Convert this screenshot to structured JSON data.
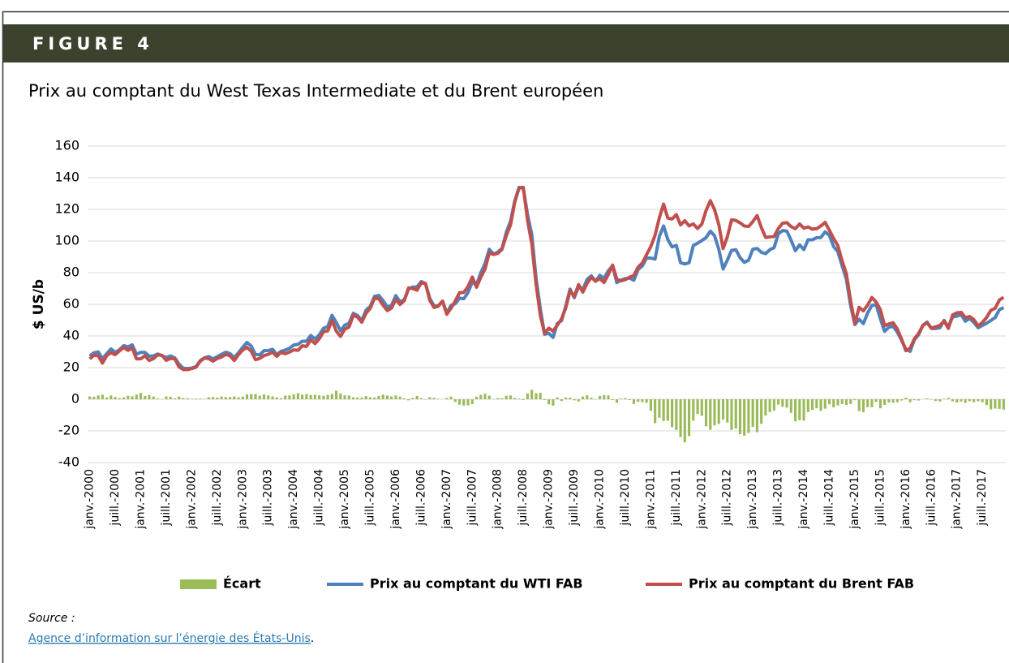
{
  "header": {
    "figure": "FIGURE 4"
  },
  "source": {
    "label": "Source :",
    "link": "Agence d’information sur l’énergie des États-Unis",
    "suffix": "."
  },
  "chart_data": {
    "type": "combo",
    "title": "Prix au comptant du West Texas Intermediate et du Brent européen",
    "y_label": "$ US/b",
    "ylim": [
      -40,
      160
    ],
    "yticks": [
      -40,
      -20,
      0,
      20,
      40,
      60,
      80,
      100,
      120,
      140,
      160
    ],
    "grid": true,
    "legend": "bottom",
    "categories": [
      "janv.-2000",
      null,
      null,
      null,
      null,
      null,
      "juill.-2000",
      null,
      null,
      null,
      null,
      null,
      "janv.-2001",
      null,
      null,
      null,
      null,
      null,
      "juill.-2001",
      null,
      null,
      null,
      null,
      null,
      "janv.-2002",
      null,
      null,
      null,
      null,
      null,
      "juill.-2002",
      null,
      null,
      null,
      null,
      null,
      "janv.-2003",
      null,
      null,
      null,
      null,
      null,
      "juill.-2003",
      null,
      null,
      null,
      null,
      null,
      "janv.-2004",
      null,
      null,
      null,
      null,
      null,
      "juill.-2004",
      null,
      null,
      null,
      null,
      null,
      "janv.-2005",
      null,
      null,
      null,
      null,
      null,
      "juill.-2005",
      null,
      null,
      null,
      null,
      null,
      "janv.-2006",
      null,
      null,
      null,
      null,
      null,
      "juill.-2006",
      null,
      null,
      null,
      null,
      null,
      "janv.-2007",
      null,
      null,
      null,
      null,
      null,
      "juill.-2007",
      null,
      null,
      null,
      null,
      null,
      "janv.-2008",
      null,
      null,
      null,
      null,
      null,
      "juill.-2008",
      null,
      null,
      null,
      null,
      null,
      "janv.-2009",
      null,
      null,
      null,
      null,
      null,
      "juill.-2009",
      null,
      null,
      null,
      null,
      null,
      "janv.-2010",
      null,
      null,
      null,
      null,
      null,
      "juill.-2010",
      null,
      null,
      null,
      null,
      null,
      "janv.-2011",
      null,
      null,
      null,
      null,
      null,
      "juill.-2011",
      null,
      null,
      null,
      null,
      null,
      "janv.-2012",
      null,
      null,
      null,
      null,
      null,
      "juill.-2012",
      null,
      null,
      null,
      null,
      null,
      "janv.-2013",
      null,
      null,
      null,
      null,
      null,
      "juill.-2013",
      null,
      null,
      null,
      null,
      null,
      "janv.-2014",
      null,
      null,
      null,
      null,
      null,
      "juill.-2014",
      null,
      null,
      null,
      null,
      null,
      "janv.-2015",
      null,
      null,
      null,
      null,
      null,
      "juill.-2015",
      null,
      null,
      null,
      null,
      null,
      "janv.-2016",
      null,
      null,
      null,
      null,
      null,
      "juill.-2016",
      null,
      null,
      null,
      null,
      null,
      "janv.-2017",
      null,
      null,
      null,
      null,
      null,
      "juill.-2017",
      null,
      null,
      null,
      null,
      null
    ],
    "series": [
      {
        "name": "Écart",
        "type": "bar",
        "color": "#9bbb59",
        "values": [
          1.8,
          1.6,
          2.4,
          2.9,
          1.2,
          2.4,
          1.5,
          0.7,
          1.2,
          2.2,
          1.9,
          3.0,
          4.0,
          2.1,
          2.7,
          1.7,
          0.5,
          -0.1,
          1.8,
          1.6,
          0.6,
          1.7,
          0.8,
          0.7,
          0.3,
          0.4,
          0.4,
          0.2,
          1.3,
          1.4,
          1.1,
          1.7,
          1.4,
          1.4,
          1.8,
          1.2,
          1.7,
          3.1,
          3.3,
          3.3,
          2.3,
          3.1,
          2.4,
          1.8,
          1.2,
          0.7,
          2.3,
          2.4,
          3.1,
          3.8,
          2.9,
          3.3,
          2.7,
          2.8,
          2.5,
          2.2,
          2.7,
          3.3,
          5.4,
          3.6,
          2.5,
          2.4,
          1.2,
          1.1,
          1.1,
          2.0,
          1.2,
          1.1,
          2.1,
          2.9,
          2.3,
          1.8,
          2.4,
          1.7,
          0.6,
          -0.7,
          0.9,
          2.1,
          0.7,
          -0.2,
          1.3,
          0.9,
          0.3,
          0.0,
          0.8,
          1.7,
          -1.7,
          -3.5,
          -4.0,
          -3.8,
          -3.1,
          1.6,
          2.8,
          3.5,
          2.3,
          0.2,
          0.8,
          0.6,
          2.2,
          2.4,
          0.8,
          0.4,
          -0.5,
          3.7,
          6.0,
          3.8,
          4.1,
          -0.5,
          -3.2,
          -4.0,
          1.1,
          -1.1,
          1.1,
          1.0,
          -0.7,
          -1.4,
          1.7,
          2.5,
          1.0,
          -0.2,
          2.1,
          2.6,
          2.4,
          -0.5,
          -2.2,
          0.5,
          0.7,
          -0.5,
          -3.0,
          -1.6,
          -1.8,
          -2.2,
          -7.3,
          -15.1,
          -11.7,
          -13.8,
          -13.6,
          -17.6,
          -19.4,
          -23.9,
          -27.3,
          -23.3,
          -13.6,
          -9.3,
          -10.4,
          -17.1,
          -19.3,
          -16.5,
          -15.6,
          -12.9,
          -14.7,
          -19.3,
          -18.5,
          -22.0,
          -23.0,
          -21.3,
          -17.5,
          -20.8,
          -15.6,
          -10.3,
          -8.1,
          -7.1,
          -3.3,
          -4.7,
          -5.3,
          -8.6,
          -13.9,
          -13.2,
          -13.5,
          -8.1,
          -6.7,
          -5.7,
          -7.3,
          -6.0,
          -3.2,
          -5.1,
          -3.9,
          -3.0,
          -3.6,
          -3.0,
          -0.6,
          -7.5,
          -8.1,
          -5.0,
          -5.0,
          -1.7,
          -5.7,
          -3.6,
          -2.1,
          -2.2,
          -1.9,
          -0.8,
          1.0,
          -1.9,
          -0.6,
          -0.8,
          0.0,
          0.5,
          -0.2,
          -1.1,
          -1.4,
          0.3,
          0.9,
          -1.3,
          -2.1,
          -1.4,
          -2.3,
          -1.2,
          -1.8,
          -1.2,
          -1.9,
          -3.7,
          -6.4,
          -5.9,
          -6.1,
          -6.5
        ]
      },
      {
        "name": "Prix au comptant du WTI FAB",
        "type": "line",
        "color": "#4f81bd",
        "values": [
          27.3,
          29.4,
          29.9,
          25.7,
          28.8,
          31.8,
          29.7,
          31.3,
          33.9,
          33.1,
          34.4,
          28.5,
          29.6,
          29.6,
          27.2,
          27.4,
          28.6,
          27.6,
          26.4,
          27.4,
          26.2,
          22.2,
          19.6,
          19.4,
          19.7,
          20.7,
          24.4,
          26.2,
          27.0,
          25.5,
          26.9,
          28.4,
          29.7,
          28.9,
          26.3,
          29.4,
          32.9,
          35.9,
          33.6,
          28.3,
          28.1,
          30.7,
          30.8,
          31.6,
          28.3,
          30.3,
          31.1,
          32.2,
          34.3,
          34.7,
          36.7,
          36.7,
          40.3,
          38.0,
          40.7,
          44.9,
          45.9,
          53.1,
          48.5,
          43.3,
          46.8,
          48.0,
          54.3,
          53.0,
          49.8,
          56.3,
          58.7,
          65.0,
          65.6,
          62.4,
          58.3,
          59.4,
          65.5,
          61.6,
          62.9,
          69.7,
          70.9,
          71.0,
          74.4,
          73.0,
          63.8,
          58.9,
          59.1,
          62.0,
          54.5,
          59.3,
          60.4,
          63.9,
          63.5,
          67.5,
          74.1,
          72.4,
          79.9,
          85.8,
          94.8,
          91.7,
          93.0,
          95.4,
          105.5,
          112.6,
          125.4,
          133.9,
          133.4,
          116.7,
          104.1,
          76.6,
          57.3,
          41.1,
          41.7,
          39.1,
          47.9,
          49.7,
          59.0,
          69.6,
          64.2,
          71.1,
          69.4,
          75.7,
          78.0,
          74.5,
          78.3,
          76.4,
          81.2,
          84.3,
          73.7,
          75.3,
          76.3,
          76.6,
          75.2,
          81.9,
          84.3,
          89.2,
          89.2,
          88.6,
          102.9,
          109.5,
          100.9,
          96.3,
          97.3,
          86.3,
          85.5,
          86.3,
          97.2,
          98.6,
          100.3,
          102.2,
          106.2,
          103.3,
          94.7,
          82.3,
          87.9,
          94.1,
          94.5,
          89.5,
          86.5,
          87.9,
          94.8,
          95.3,
          92.9,
          92.0,
          94.5,
          95.8,
          104.6,
          106.6,
          106.3,
          100.5,
          93.9,
          97.6,
          94.6,
          100.8,
          100.8,
          102.1,
          102.2,
          105.8,
          103.6,
          96.5,
          93.2,
          84.4,
          75.8,
          59.3,
          47.2,
          50.6,
          47.8,
          54.5,
          59.3,
          59.8,
          50.9,
          42.9,
          45.5,
          46.2,
          42.4,
          37.2,
          31.7,
          30.3,
          37.6,
          40.8,
          46.7,
          48.8,
          44.7,
          44.7,
          45.2,
          49.8,
          45.7,
          52.0,
          52.5,
          53.5,
          49.3,
          51.1,
          48.5,
          45.2,
          46.6,
          48.0,
          49.8,
          51.6,
          56.6,
          57.9
        ]
      },
      {
        "name": "Prix au comptant du Brent FAB",
        "type": "line",
        "color": "#c0504d",
        "values": [
          25.5,
          27.8,
          27.5,
          22.8,
          27.6,
          29.4,
          28.2,
          30.6,
          32.7,
          30.9,
          32.5,
          25.5,
          25.6,
          27.5,
          24.5,
          25.7,
          28.1,
          27.7,
          24.6,
          25.8,
          25.6,
          20.5,
          18.8,
          18.7,
          19.4,
          20.3,
          24.0,
          26.0,
          25.7,
          24.1,
          25.8,
          26.7,
          28.3,
          27.5,
          24.5,
          28.2,
          31.2,
          32.8,
          30.3,
          25.0,
          25.8,
          27.6,
          28.4,
          29.8,
          27.1,
          29.6,
          28.8,
          29.8,
          31.2,
          30.9,
          33.8,
          33.4,
          37.6,
          35.2,
          38.2,
          42.7,
          43.2,
          49.8,
          43.1,
          39.7,
          44.3,
          45.6,
          53.1,
          51.9,
          48.7,
          54.3,
          57.5,
          63.9,
          63.5,
          59.5,
          56.0,
          57.6,
          63.1,
          59.9,
          62.3,
          70.4,
          70.0,
          68.9,
          73.7,
          73.2,
          62.5,
          58.0,
          58.8,
          62.0,
          53.7,
          57.6,
          62.1,
          67.4,
          67.5,
          71.3,
          77.2,
          70.8,
          77.1,
          82.3,
          92.5,
          91.5,
          92.2,
          94.8,
          103.3,
          110.2,
          124.6,
          133.5,
          133.9,
          113.0,
          98.1,
          72.8,
          53.2,
          41.6,
          44.9,
          43.1,
          46.8,
          50.8,
          57.9,
          68.6,
          64.9,
          72.5,
          67.7,
          73.2,
          77.0,
          74.7,
          76.2,
          73.8,
          78.8,
          84.8,
          75.9,
          74.8,
          75.6,
          77.1,
          78.2,
          83.5,
          86.1,
          91.4,
          96.5,
          103.7,
          114.6,
          123.3,
          114.5,
          113.9,
          116.7,
          110.2,
          112.8,
          109.6,
          110.8,
          107.9,
          110.7,
          119.3,
          125.5,
          119.8,
          110.3,
          95.2,
          102.6,
          113.4,
          113.0,
          111.5,
          109.5,
          109.2,
          112.3,
          116.1,
          108.5,
          102.3,
          102.6,
          102.9,
          107.9,
          111.3,
          111.6,
          109.1,
          107.8,
          110.8,
          108.1,
          108.9,
          107.5,
          107.8,
          109.5,
          111.8,
          106.8,
          101.6,
          97.1,
          87.4,
          79.4,
          62.3,
          47.8,
          58.1,
          55.9,
          59.5,
          64.3,
          61.5,
          56.6,
          46.5,
          47.6,
          48.4,
          44.3,
          38.0,
          30.7,
          32.2,
          38.2,
          41.6,
          46.7,
          48.3,
          44.9,
          45.8,
          46.6,
          49.5,
          44.8,
          53.3,
          54.6,
          54.9,
          51.6,
          52.3,
          50.3,
          46.4,
          48.5,
          51.7,
          56.2,
          57.5,
          62.7,
          64.4
        ]
      }
    ]
  }
}
